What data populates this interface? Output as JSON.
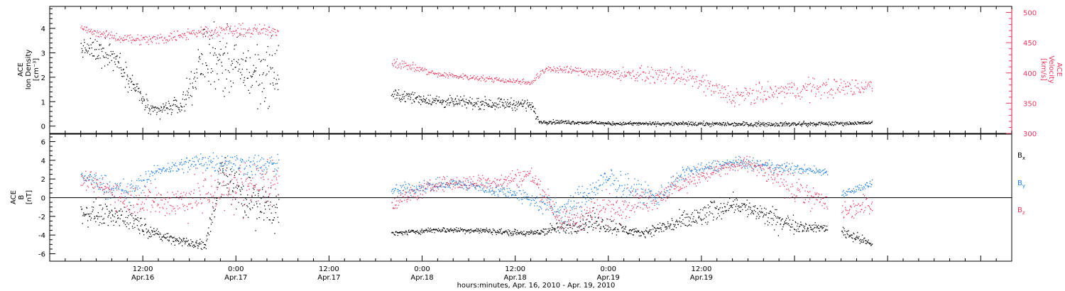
{
  "chart_data": [
    {
      "type": "scatter",
      "panel": "top",
      "ylabel_left": [
        "ACE",
        "Ion Density",
        "[cm⁻³]"
      ],
      "ylabel_right": [
        "ACE",
        "Velocity",
        "[km/s]"
      ],
      "y_left_ticks": [
        "4",
        "3",
        "2",
        "1",
        "0"
      ],
      "y_left_range": [
        -0.3,
        4.9
      ],
      "y_right_ticks": [
        "500",
        "450",
        "400",
        "350",
        "300"
      ],
      "y_right_range": [
        300,
        510
      ],
      "series": [
        {
          "axis": "left",
          "color": "#000000",
          "x_start_hour": 4,
          "x_end_hour": 106,
          "step": 0.06,
          "segments": [
            {
              "hour": 4,
              "value": 3.2,
              "noise": 0.35
            },
            {
              "hour": 8,
              "value": 3.0,
              "noise": 0.5
            },
            {
              "hour": 13,
              "value": 0.6,
              "noise": 0.25
            },
            {
              "hour": 17,
              "value": 0.9,
              "noise": 0.3
            },
            {
              "hour": 20,
              "value": 3.0,
              "noise": 1.1
            },
            {
              "hour": 26,
              "value": 2.2,
              "noise": 1.1
            },
            {
              "hour": 29.5,
              "value": null
            },
            {
              "hour": 44,
              "value": 1.3,
              "noise": 0.2
            },
            {
              "hour": 51,
              "value": 1.0,
              "noise": 0.2
            },
            {
              "hour": 62,
              "value": 0.9,
              "noise": 0.2
            },
            {
              "hour": 63,
              "value": 0.2,
              "noise": 0.08
            },
            {
              "hour": 70,
              "value": 0.15,
              "noise": 0.06
            },
            {
              "hour": 72,
              "value": 0.12,
              "noise": 0.06
            },
            {
              "hour": 88,
              "value": 0.1,
              "noise": 0.08
            },
            {
              "hour": 98,
              "value": 0.1,
              "noise": 0.08
            },
            {
              "hour": 106,
              "value": 0.15,
              "noise": 0.06
            }
          ]
        },
        {
          "axis": "right",
          "color": "#e8385e",
          "x_start_hour": 4,
          "x_end_hour": 106,
          "step": 0.08,
          "segments": [
            {
              "hour": 4,
              "value": 475,
              "noise": 4
            },
            {
              "hour": 8,
              "value": 460,
              "noise": 6
            },
            {
              "hour": 13,
              "value": 455,
              "noise": 8
            },
            {
              "hour": 20,
              "value": 470,
              "noise": 9
            },
            {
              "hour": 29.5,
              "value": null
            },
            {
              "hour": 44,
              "value": 420,
              "noise": 8
            },
            {
              "hour": 50,
              "value": 398,
              "noise": 4
            },
            {
              "hour": 62,
              "value": 385,
              "noise": 4
            },
            {
              "hour": 64,
              "value": 408,
              "noise": 5
            },
            {
              "hour": 72,
              "value": 400,
              "noise": 8
            },
            {
              "hour": 82,
              "value": 395,
              "noise": 12
            },
            {
              "hour": 88,
              "value": 360,
              "noise": 15
            },
            {
              "hour": 98,
              "value": 375,
              "noise": 15
            },
            {
              "hour": 106,
              "value": 378,
              "noise": 12
            }
          ]
        }
      ]
    },
    {
      "type": "scatter",
      "panel": "bottom",
      "ylabel_left": [
        "ACE",
        "B",
        "[nT]"
      ],
      "y_ticks": [
        "6",
        "4",
        "2",
        "0",
        "-2",
        "-4",
        "-6"
      ],
      "y_range": [
        -6.8,
        6.8
      ],
      "zero_line": true,
      "legend": [
        {
          "label": "Bx",
          "base": "B",
          "sub": "x",
          "color": "#000000"
        },
        {
          "label": "By",
          "base": "B",
          "sub": "y",
          "color": "#1f7fe0"
        },
        {
          "label": "Bz",
          "base": "B",
          "sub": "z",
          "color": "#e8385e"
        }
      ],
      "series": [
        {
          "name": "Bx",
          "color": "#000000",
          "step": 0.06,
          "segments": [
            {
              "hour": 4,
              "value": -1.5,
              "noise": 1.0
            },
            {
              "hour": 10,
              "value": -2.0,
              "noise": 1.2
            },
            {
              "hour": 14,
              "value": -4.0,
              "noise": 0.4
            },
            {
              "hour": 20,
              "value": -5.2,
              "noise": 0.6
            },
            {
              "hour": 22,
              "value": 2.5,
              "noise": 2.0
            },
            {
              "hour": 27,
              "value": -1.0,
              "noise": 2.0
            },
            {
              "hour": 29.5,
              "value": null
            },
            {
              "hour": 44,
              "value": -3.8,
              "noise": 0.2
            },
            {
              "hour": 50,
              "value": -3.4,
              "noise": 0.25
            },
            {
              "hour": 56,
              "value": -3.5,
              "noise": 0.25
            },
            {
              "hour": 62,
              "value": -3.8,
              "noise": 0.3
            },
            {
              "hour": 70,
              "value": -2.5,
              "noise": 1.0
            },
            {
              "hour": 76,
              "value": -3.8,
              "noise": 0.3
            },
            {
              "hour": 84,
              "value": -2.0,
              "noise": 1.2
            },
            {
              "hour": 88,
              "value": -0.5,
              "noise": 0.8
            },
            {
              "hour": 94,
              "value": -2.5,
              "noise": 1.0
            },
            {
              "hour": 98,
              "value": -3.2,
              "noise": 0.4
            },
            {
              "hour": 100.2,
              "value": null
            },
            {
              "hour": 102,
              "value": -3.5,
              "noise": 0.6
            },
            {
              "hour": 106,
              "value": -5.0,
              "noise": 0.3
            }
          ]
        },
        {
          "name": "By",
          "color": "#1f7fe0",
          "step": 0.07,
          "segments": [
            {
              "hour": 4,
              "value": 2.4,
              "noise": 0.6
            },
            {
              "hour": 10,
              "value": 0.5,
              "noise": 1.2
            },
            {
              "hour": 14,
              "value": 3.0,
              "noise": 0.5
            },
            {
              "hour": 20,
              "value": 4.0,
              "noise": 1.0
            },
            {
              "hour": 27,
              "value": 3.5,
              "noise": 1.0
            },
            {
              "hour": 29.5,
              "value": null
            },
            {
              "hour": 44,
              "value": 0.8,
              "noise": 0.6
            },
            {
              "hour": 52,
              "value": 1.6,
              "noise": 0.5
            },
            {
              "hour": 60,
              "value": 0.5,
              "noise": 0.6
            },
            {
              "hour": 66,
              "value": -1.5,
              "noise": 1.2
            },
            {
              "hour": 72,
              "value": 2.0,
              "noise": 1.2
            },
            {
              "hour": 78,
              "value": 0.0,
              "noise": 1.0
            },
            {
              "hour": 82,
              "value": 2.8,
              "noise": 0.6
            },
            {
              "hour": 88,
              "value": 3.8,
              "noise": 0.5
            },
            {
              "hour": 94,
              "value": 3.3,
              "noise": 0.5
            },
            {
              "hour": 100,
              "value": 2.8,
              "noise": 0.4
            },
            {
              "hour": 100.2,
              "value": null
            },
            {
              "hour": 102,
              "value": 0.5,
              "noise": 0.3
            },
            {
              "hour": 106,
              "value": 1.5,
              "noise": 0.4
            }
          ]
        },
        {
          "name": "Bz",
          "color": "#e8385e",
          "step": 0.07,
          "segments": [
            {
              "hour": 4,
              "value": 2.0,
              "noise": 0.8
            },
            {
              "hour": 10,
              "value": 0.0,
              "noise": 1.5
            },
            {
              "hour": 16,
              "value": -0.5,
              "noise": 1.5
            },
            {
              "hour": 22,
              "value": 1.0,
              "noise": 2.5
            },
            {
              "hour": 29,
              "value": 2.0,
              "noise": 2.0
            },
            {
              "hour": 29.5,
              "value": null
            },
            {
              "hour": 44,
              "value": -0.5,
              "noise": 0.8
            },
            {
              "hour": 50,
              "value": 1.5,
              "noise": 0.6
            },
            {
              "hour": 58,
              "value": 1.8,
              "noise": 0.8
            },
            {
              "hour": 62,
              "value": 2.5,
              "noise": 0.8
            },
            {
              "hour": 66,
              "value": -2.5,
              "noise": 1.0
            },
            {
              "hour": 72,
              "value": -1.0,
              "noise": 1.5
            },
            {
              "hour": 78,
              "value": 0.0,
              "noise": 1.0
            },
            {
              "hour": 84,
              "value": 2.5,
              "noise": 0.8
            },
            {
              "hour": 90,
              "value": 3.8,
              "noise": 0.6
            },
            {
              "hour": 96,
              "value": 1.0,
              "noise": 1.5
            },
            {
              "hour": 100,
              "value": -0.5,
              "noise": 0.8
            },
            {
              "hour": 100.2,
              "value": null
            },
            {
              "hour": 102,
              "value": -1.5,
              "noise": 1.0
            },
            {
              "hour": 106,
              "value": -0.5,
              "noise": 1.0
            }
          ]
        }
      ]
    }
  ],
  "time_axis": {
    "xlabel": "hours:minutes, Apr. 16, 2010 - Apr. 19, 2010",
    "range_hours": [
      0,
      124
    ],
    "start": "Apr. 16, 2010 00:00 (approx.)",
    "major_ticks": [
      {
        "hour": 12,
        "time": "12:00",
        "date": "Apr.16"
      },
      {
        "hour": 24,
        "time": "0:00",
        "date": "Apr.17"
      },
      {
        "hour": 36,
        "time": "12:00",
        "date": "Apr.17"
      },
      {
        "hour": 48,
        "time": "0:00",
        "date": "Apr.18"
      },
      {
        "hour": 60,
        "time": "12:00",
        "date": "Apr.18"
      },
      {
        "hour": 72,
        "time": "0:00",
        "date": "Apr.19"
      },
      {
        "hour": 84,
        "time": "12:00",
        "date": "Apr.19"
      }
    ]
  }
}
